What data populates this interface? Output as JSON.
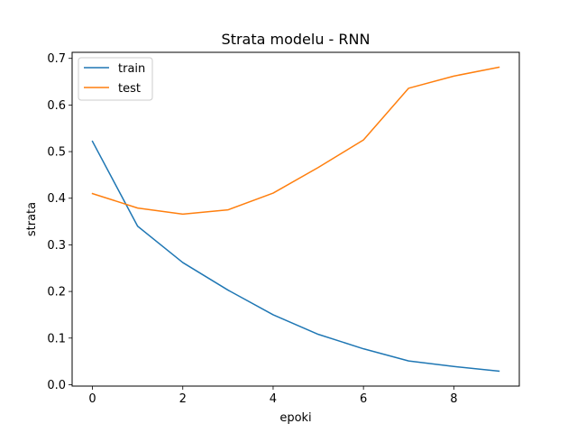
{
  "chart_data": {
    "type": "line",
    "title": "Strata modelu - RNN",
    "xlabel": "epoki",
    "ylabel": "strata",
    "x": [
      0,
      1,
      2,
      3,
      4,
      5,
      6,
      7,
      8,
      9
    ],
    "xlim": [
      -0.45,
      9.45
    ],
    "ylim": [
      -0.003,
      0.713
    ],
    "xticks": [
      0,
      2,
      4,
      6,
      8
    ],
    "xtick_labels": [
      "0",
      "2",
      "4",
      "6",
      "8"
    ],
    "yticks": [
      0.0,
      0.1,
      0.2,
      0.3,
      0.4,
      0.5,
      0.6,
      0.7
    ],
    "ytick_labels": [
      "0.0",
      "0.1",
      "0.2",
      "0.3",
      "0.4",
      "0.5",
      "0.6",
      "0.7"
    ],
    "grid": false,
    "legend_position": "top-left",
    "series": [
      {
        "name": "train",
        "color": "#1f77b4",
        "values": [
          0.522,
          0.34,
          0.262,
          0.203,
          0.15,
          0.108,
          0.077,
          0.051,
          0.039,
          0.029
        ]
      },
      {
        "name": "test",
        "color": "#ff7f0e",
        "values": [
          0.41,
          0.379,
          0.366,
          0.375,
          0.411,
          0.466,
          0.525,
          0.636,
          0.662,
          0.681
        ]
      }
    ]
  }
}
